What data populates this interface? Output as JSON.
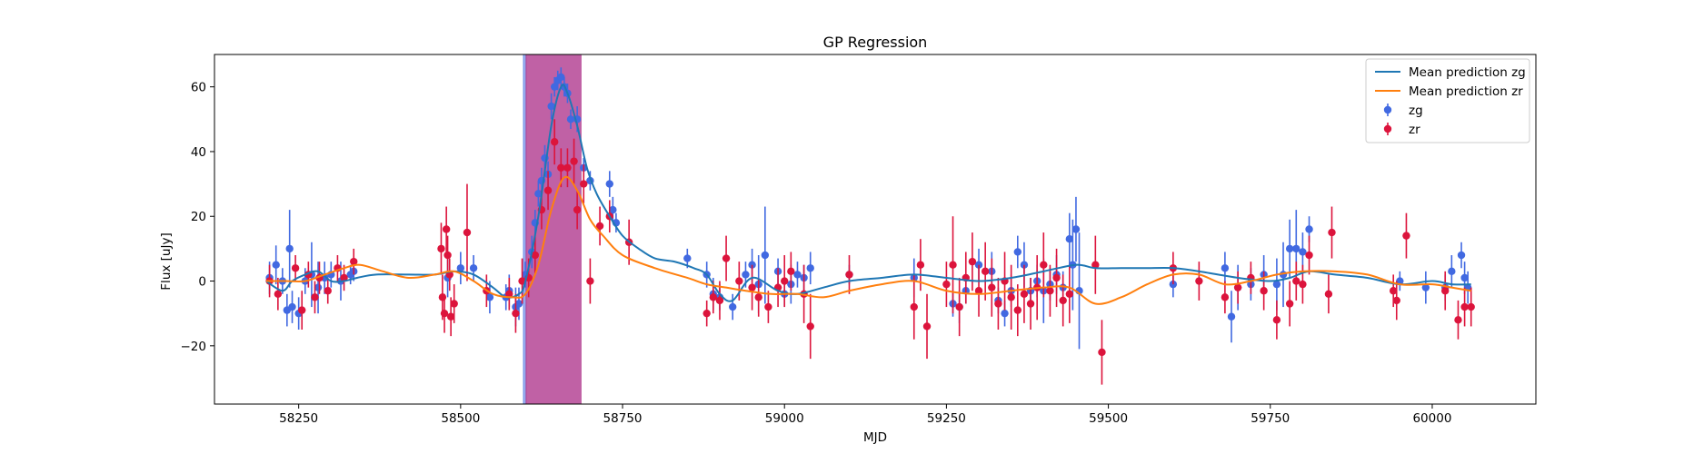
{
  "chart_data": {
    "type": "scatter",
    "title": "GP Regression",
    "xlabel": "MJD",
    "ylabel": "Flux [uJy]",
    "xlim": [
      58120,
      60160
    ],
    "ylim": [
      -38,
      70
    ],
    "xticks": [
      58250,
      58500,
      58750,
      59000,
      59250,
      59500,
      59750,
      60000
    ],
    "yticks": [
      -20,
      0,
      20,
      40,
      60
    ],
    "grid": false,
    "legend_position": "top-right",
    "colors": {
      "zg": "#4169e1",
      "zr": "#dc143c",
      "mean_zg": "#1f77b4",
      "mean_zr": "#ff7f0e"
    },
    "shaded_regions": [
      {
        "x0": 58597,
        "x1": 58601,
        "color": "#4169e1",
        "alpha": 0.5
      },
      {
        "x0": 58601,
        "x1": 58686,
        "color": "#b03a8e",
        "alpha": 0.8
      }
    ],
    "legend": [
      {
        "label": "Mean prediction zg",
        "kind": "line",
        "color": "#1f77b4"
      },
      {
        "label": "Mean prediction zr",
        "kind": "line",
        "color": "#ff7f0e"
      },
      {
        "label": "zg",
        "kind": "errorbar",
        "color": "#4169e1"
      },
      {
        "label": "zr",
        "kind": "errorbar",
        "color": "#dc143c"
      }
    ],
    "series": [
      {
        "name": "Mean prediction zg",
        "kind": "line",
        "color": "#1f77b4",
        "x": [
          58200,
          58225,
          58240,
          58260,
          58280,
          58300,
          58320,
          58340,
          58370,
          58420,
          58460,
          58490,
          58520,
          58550,
          58570,
          58590,
          58600,
          58620,
          58640,
          58655,
          58665,
          58680,
          58695,
          58710,
          58730,
          58750,
          58775,
          58800,
          58830,
          58860,
          58880,
          58900,
          58920,
          58950,
          58990,
          59020,
          59060,
          59100,
          59150,
          59200,
          59250,
          59300,
          59350,
          59400,
          59450,
          59480,
          59520,
          59560,
          59600,
          59640,
          59700,
          59750,
          59780,
          59810,
          59850,
          59900,
          59950,
          60000,
          60030,
          60060
        ],
        "y": [
          0,
          -3,
          0,
          2,
          3,
          0,
          0,
          1,
          2,
          2,
          2,
          3,
          2,
          -2,
          -5,
          -4,
          0,
          20,
          48,
          60,
          58,
          48,
          35,
          27,
          20,
          14,
          10,
          7,
          6,
          4,
          2,
          -4,
          -6,
          1,
          -3,
          -4,
          -2,
          0,
          1,
          2,
          1,
          0,
          1,
          3,
          5,
          4,
          4,
          4,
          4,
          3,
          1,
          0,
          1,
          3,
          2,
          1,
          -1,
          0,
          -1,
          -1
        ]
      },
      {
        "name": "Mean prediction zr",
        "kind": "line",
        "color": "#ff7f0e",
        "x": [
          58200,
          58230,
          58260,
          58290,
          58320,
          58345,
          58380,
          58420,
          58460,
          58490,
          58520,
          58550,
          58580,
          58600,
          58620,
          58640,
          58660,
          58680,
          58700,
          58720,
          58750,
          58800,
          58850,
          58880,
          58910,
          58940,
          58980,
          59020,
          59060,
          59100,
          59150,
          59200,
          59250,
          59300,
          59350,
          59400,
          59440,
          59480,
          59520,
          59560,
          59600,
          59640,
          59680,
          59720,
          59760,
          59800,
          59850,
          59900,
          59950,
          60000,
          60030,
          60060
        ],
        "y": [
          0,
          0,
          0,
          2,
          4,
          5,
          3,
          1,
          2,
          3,
          0,
          -4,
          -5,
          -4,
          5,
          22,
          32,
          28,
          19,
          14,
          8,
          4,
          1,
          -1,
          -2,
          -3,
          -4,
          -4,
          -5,
          -3,
          -1,
          0,
          -3,
          -4,
          -3,
          -2,
          -2,
          -7,
          -5,
          -1,
          2,
          2,
          -1,
          0,
          2,
          3,
          3,
          2,
          -1,
          -1,
          -2,
          -3
        ]
      },
      {
        "name": "zg",
        "kind": "errorbar",
        "color": "#4169e1",
        "x": [
          58205,
          58215,
          58225,
          58232,
          58236,
          58240,
          58250,
          58260,
          58270,
          58280,
          58290,
          58300,
          58315,
          58330,
          58335,
          58480,
          58500,
          58520,
          58545,
          58570,
          58575,
          58585,
          58590,
          58600,
          58610,
          58615,
          58620,
          58625,
          58630,
          58635,
          58640,
          58645,
          58650,
          58655,
          58660,
          58665,
          58670,
          58680,
          58690,
          58700,
          58730,
          58735,
          58740,
          58850,
          58880,
          58890,
          58900,
          58920,
          58940,
          58950,
          58960,
          58970,
          58990,
          59000,
          59010,
          59020,
          59030,
          59040,
          59100,
          59200,
          59260,
          59270,
          59280,
          59300,
          59320,
          59330,
          59340,
          59350,
          59360,
          59370,
          59380,
          59390,
          59400,
          59410,
          59420,
          59430,
          59440,
          59445,
          59450,
          59455,
          59600,
          59680,
          59690,
          59700,
          59720,
          59740,
          59760,
          59770,
          59780,
          59790,
          59800,
          59810,
          59950,
          59990,
          60020,
          60030,
          60045,
          60050,
          60055
        ],
        "y": [
          1,
          5,
          0,
          -9,
          10,
          -8,
          -10,
          0,
          2,
          -2,
          1,
          2,
          0,
          2,
          3,
          1,
          4,
          4,
          -5,
          -5,
          -3,
          -8,
          -7,
          2,
          9,
          18,
          27,
          31,
          38,
          33,
          54,
          60,
          62,
          63,
          60,
          58,
          50,
          50,
          35,
          31,
          30,
          22,
          18,
          7,
          2,
          -4,
          -5,
          -8,
          2,
          5,
          -1,
          8,
          3,
          -4,
          -1,
          2,
          1,
          4,
          2,
          1,
          -7,
          -8,
          -3,
          5,
          3,
          -6,
          -10,
          -3,
          9,
          5,
          -3,
          0,
          -3,
          -1,
          2,
          -2,
          13,
          5,
          16,
          -3,
          -1,
          4,
          -11,
          -2,
          -1,
          2,
          -1,
          2,
          10,
          10,
          9,
          16,
          0,
          -2,
          -2,
          3,
          8,
          1,
          -2
        ],
        "err": [
          5,
          6,
          4,
          5,
          12,
          5,
          5,
          4,
          10,
          8,
          5,
          4,
          6,
          3,
          3,
          6,
          5,
          4,
          5,
          4,
          5,
          6,
          5,
          4,
          5,
          4,
          4,
          4,
          4,
          4,
          4,
          3,
          3,
          3,
          3,
          3,
          3,
          4,
          3,
          3,
          4,
          4,
          3,
          3,
          4,
          5,
          4,
          4,
          4,
          5,
          9,
          15,
          4,
          4,
          6,
          4,
          4,
          5,
          3,
          6,
          4,
          5,
          4,
          5,
          6,
          4,
          4,
          5,
          5,
          7,
          4,
          5,
          10,
          5,
          6,
          5,
          8,
          14,
          10,
          18,
          4,
          5,
          8,
          7,
          5,
          6,
          8,
          10,
          9,
          12,
          6,
          4,
          3,
          5,
          4,
          5,
          4,
          5,
          5
        ]
      },
      {
        "name": "zr",
        "kind": "errorbar",
        "color": "#dc143c",
        "x": [
          58205,
          58218,
          58245,
          58255,
          58265,
          58275,
          58282,
          58295,
          58310,
          58320,
          58335,
          58470,
          58472,
          58475,
          58478,
          58480,
          58483,
          58485,
          58490,
          58510,
          58540,
          58575,
          58585,
          58595,
          58605,
          58615,
          58625,
          58635,
          58645,
          58655,
          58665,
          58675,
          58680,
          58690,
          58700,
          58715,
          58730,
          58760,
          58880,
          58890,
          58900,
          58910,
          58930,
          58950,
          58960,
          58975,
          58990,
          59000,
          59010,
          59030,
          59040,
          59100,
          59200,
          59210,
          59220,
          59250,
          59260,
          59270,
          59280,
          59290,
          59300,
          59310,
          59320,
          59330,
          59340,
          59350,
          59360,
          59370,
          59380,
          59390,
          59400,
          59410,
          59420,
          59430,
          59440,
          59480,
          59490,
          59600,
          59640,
          59680,
          59700,
          59720,
          59740,
          59760,
          59780,
          59790,
          59800,
          59810,
          59840,
          59845,
          59940,
          59945,
          59960,
          60020,
          60040,
          60050,
          60060
        ],
        "y": [
          0,
          -4,
          4,
          -9,
          2,
          -5,
          1,
          -3,
          4,
          1,
          6,
          10,
          -5,
          -10,
          16,
          8,
          2,
          -11,
          -7,
          15,
          -3,
          -4,
          -10,
          0,
          1,
          8,
          22,
          28,
          43,
          35,
          35,
          37,
          22,
          30,
          0,
          17,
          20,
          12,
          -10,
          -5,
          -6,
          7,
          0,
          -2,
          -5,
          -8,
          -2,
          0,
          3,
          -4,
          -14,
          2,
          -8,
          5,
          -14,
          -1,
          5,
          -8,
          1,
          6,
          -3,
          3,
          -2,
          -7,
          0,
          -5,
          -9,
          -4,
          -7,
          -2,
          5,
          -3,
          1,
          -6,
          -4,
          5,
          -22,
          4,
          0,
          -5,
          -2,
          1,
          -3,
          -12,
          -7,
          0,
          -1,
          8,
          -4,
          15,
          -3,
          -6,
          14,
          -3,
          -12,
          -8,
          -8
        ],
        "err": [
          5,
          5,
          4,
          6,
          4,
          5,
          5,
          4,
          4,
          4,
          4,
          8,
          7,
          6,
          7,
          6,
          5,
          6,
          6,
          15,
          5,
          5,
          6,
          7,
          6,
          6,
          6,
          6,
          7,
          6,
          6,
          7,
          6,
          6,
          7,
          6,
          5,
          7,
          4,
          5,
          6,
          7,
          6,
          7,
          6,
          5,
          6,
          8,
          6,
          9,
          10,
          6,
          10,
          8,
          10,
          7,
          15,
          9,
          8,
          9,
          8,
          9,
          9,
          8,
          9,
          10,
          8,
          9,
          8,
          10,
          10,
          8,
          9,
          8,
          9,
          9,
          10,
          5,
          6,
          5,
          5,
          5,
          6,
          6,
          7,
          6,
          6,
          6,
          6,
          8,
          5,
          6,
          7,
          6,
          6,
          6,
          6
        ]
      }
    ]
  }
}
